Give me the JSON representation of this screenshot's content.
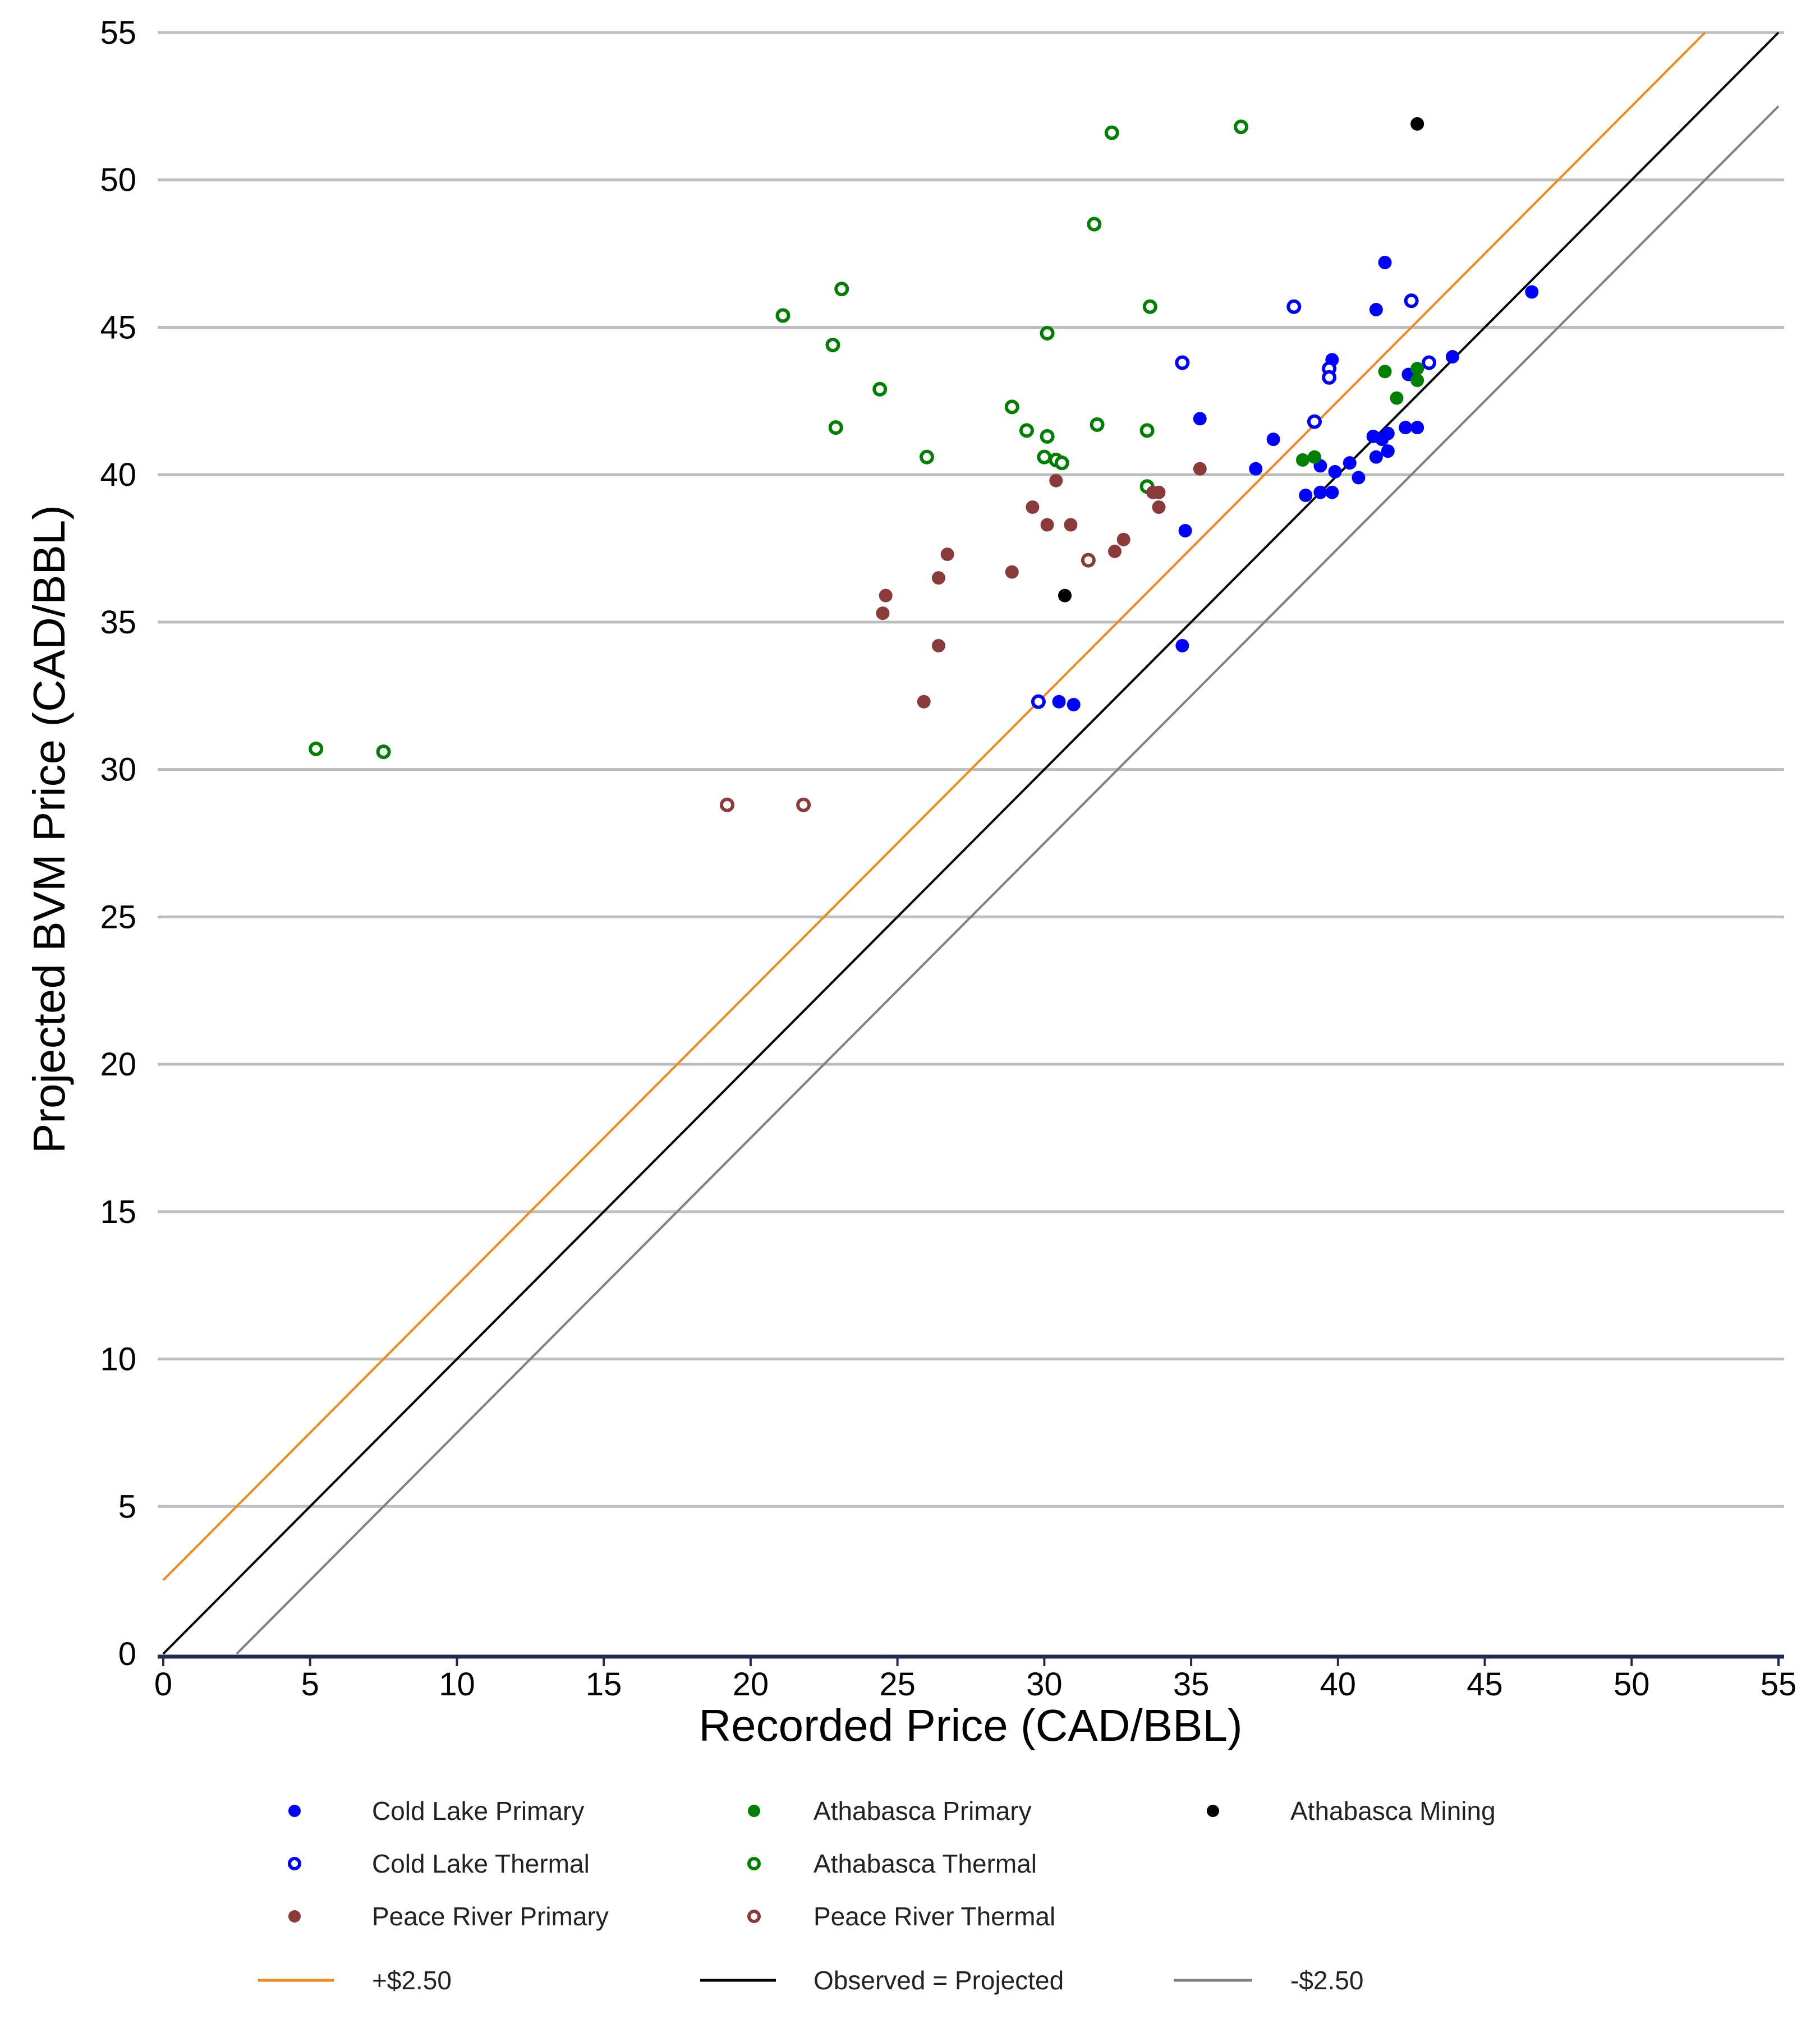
{
  "chart_data": {
    "type": "scatter",
    "title": "",
    "xlabel": "Recorded Price (CAD/BBL)",
    "ylabel": "Projected BVM Price (CAD/BBL)",
    "xlim": [
      0,
      55
    ],
    "ylim": [
      0,
      55
    ],
    "xticks": [
      0,
      5,
      10,
      15,
      20,
      25,
      30,
      35,
      40,
      45,
      50,
      55
    ],
    "yticks": [
      0,
      5,
      10,
      15,
      20,
      25,
      30,
      35,
      40,
      45,
      50,
      55
    ],
    "grid": "horizontal",
    "legend_position": "bottom",
    "series": [
      {
        "name": "Cold Lake Primary",
        "marker": "filled",
        "color": "#0000ff",
        "points": [
          [
            41.6,
            47.2
          ],
          [
            41.3,
            45.6
          ],
          [
            46.6,
            46.2
          ],
          [
            43.9,
            44.0
          ],
          [
            39.8,
            43.9
          ],
          [
            42.4,
            43.4
          ],
          [
            35.3,
            41.9
          ],
          [
            37.8,
            41.2
          ],
          [
            41.2,
            41.3
          ],
          [
            41.5,
            41.2
          ],
          [
            41.7,
            41.4
          ],
          [
            42.3,
            41.6
          ],
          [
            42.7,
            41.6
          ],
          [
            41.7,
            40.8
          ],
          [
            41.3,
            40.6
          ],
          [
            40.4,
            40.4
          ],
          [
            39.4,
            40.3
          ],
          [
            39.9,
            40.1
          ],
          [
            40.7,
            39.9
          ],
          [
            37.2,
            40.2
          ],
          [
            38.9,
            39.3
          ],
          [
            39.4,
            39.4
          ],
          [
            39.8,
            39.4
          ],
          [
            34.8,
            38.1
          ],
          [
            34.7,
            34.2
          ],
          [
            30.5,
            32.3
          ],
          [
            31.0,
            32.2
          ]
        ]
      },
      {
        "name": "Cold Lake Thermal",
        "marker": "open",
        "color": "#0000ff",
        "points": [
          [
            38.5,
            45.7
          ],
          [
            42.5,
            45.9
          ],
          [
            34.7,
            43.8
          ],
          [
            39.7,
            43.6
          ],
          [
            39.7,
            43.3
          ],
          [
            43.1,
            43.8
          ],
          [
            39.2,
            41.8
          ],
          [
            29.8,
            32.3
          ]
        ]
      },
      {
        "name": "Athabasca Primary",
        "marker": "filled",
        "color": "#008000",
        "points": [
          [
            41.6,
            43.5
          ],
          [
            42.7,
            43.6
          ],
          [
            42.7,
            43.2
          ],
          [
            42.0,
            42.6
          ],
          [
            38.8,
            40.5
          ],
          [
            39.2,
            40.6
          ]
        ]
      },
      {
        "name": "Athabasca Thermal",
        "marker": "open",
        "color": "#008000",
        "points": [
          [
            36.7,
            51.8
          ],
          [
            32.3,
            51.6
          ],
          [
            31.7,
            48.5
          ],
          [
            23.1,
            46.3
          ],
          [
            21.1,
            45.4
          ],
          [
            33.6,
            45.7
          ],
          [
            30.1,
            44.8
          ],
          [
            22.8,
            44.4
          ],
          [
            24.4,
            42.9
          ],
          [
            28.9,
            42.3
          ],
          [
            22.9,
            41.6
          ],
          [
            29.4,
            41.5
          ],
          [
            31.8,
            41.7
          ],
          [
            33.5,
            41.5
          ],
          [
            30.1,
            41.3
          ],
          [
            26.0,
            40.6
          ],
          [
            30.0,
            40.6
          ],
          [
            30.4,
            40.5
          ],
          [
            30.6,
            40.4
          ],
          [
            33.5,
            39.6
          ],
          [
            5.2,
            30.7
          ],
          [
            7.5,
            30.6
          ]
        ]
      },
      {
        "name": "Athabasca Mining",
        "marker": "filled",
        "color": "#000000",
        "points": [
          [
            42.7,
            51.9
          ],
          [
            30.7,
            35.9
          ]
        ]
      },
      {
        "name": "Peace River Primary",
        "marker": "filled",
        "color": "#8b3a3a",
        "points": [
          [
            35.3,
            40.2
          ],
          [
            30.4,
            39.8
          ],
          [
            33.7,
            39.4
          ],
          [
            33.9,
            39.4
          ],
          [
            29.6,
            38.9
          ],
          [
            33.9,
            38.9
          ],
          [
            30.1,
            38.3
          ],
          [
            30.9,
            38.3
          ],
          [
            32.7,
            37.8
          ],
          [
            32.4,
            37.4
          ],
          [
            26.7,
            37.3
          ],
          [
            28.9,
            36.7
          ],
          [
            26.4,
            36.5
          ],
          [
            24.6,
            35.9
          ],
          [
            24.5,
            35.3
          ],
          [
            26.4,
            34.2
          ],
          [
            25.9,
            32.3
          ]
        ]
      },
      {
        "name": "Peace River Thermal",
        "marker": "open",
        "color": "#8b3a3a",
        "points": [
          [
            31.5,
            37.1
          ],
          [
            19.2,
            28.8
          ],
          [
            21.8,
            28.8
          ]
        ]
      }
    ],
    "lines": [
      {
        "name": "+$2.50",
        "color": "#f08a1c",
        "offset": 2.5
      },
      {
        "name": "Observed = Projected",
        "color": "#000000",
        "offset": 0
      },
      {
        "name": "-$2.50",
        "color": "#808080",
        "offset": -2.5
      }
    ]
  }
}
